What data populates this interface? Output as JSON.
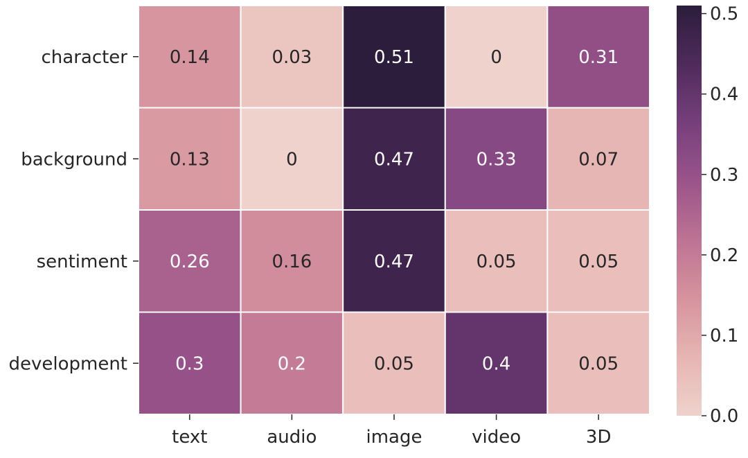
{
  "chart_data": {
    "type": "heatmap",
    "title": "",
    "xlabel": "",
    "ylabel": "",
    "x_categories": [
      "text",
      "audio",
      "image",
      "video",
      "3D"
    ],
    "y_categories": [
      "character",
      "background",
      "sentiment",
      "development"
    ],
    "values": [
      [
        0.14,
        0.03,
        0.51,
        0,
        0.31
      ],
      [
        0.13,
        0,
        0.47,
        0.33,
        0.07
      ],
      [
        0.26,
        0.16,
        0.47,
        0.05,
        0.05
      ],
      [
        0.3,
        0.2,
        0.05,
        0.4,
        0.05
      ]
    ],
    "cell_labels": [
      [
        "0.14",
        "0.03",
        "0.51",
        "0",
        "0.31"
      ],
      [
        "0.13",
        "0",
        "0.47",
        "0.33",
        "0.07"
      ],
      [
        "0.26",
        "0.16",
        "0.47",
        "0.05",
        "0.05"
      ],
      [
        "0.3",
        "0.2",
        "0.05",
        "0.4",
        "0.05"
      ]
    ],
    "colorbar": {
      "range": [
        0,
        0.51
      ],
      "ticks": [
        0,
        0.1,
        0.2,
        0.3,
        0.4,
        0.5
      ],
      "tick_labels": [
        "0.0",
        "0.1",
        "0.2",
        "0.3",
        "0.4",
        "0.5"
      ],
      "position": "right"
    },
    "colormap": [
      "#eed2cb",
      "#e6b5b3",
      "#d6939d",
      "#bd7393",
      "#9a548a",
      "#763f7c",
      "#4f2b5b",
      "#2b1d3b"
    ],
    "grid": true,
    "cell_border_color": "#ffffff"
  }
}
